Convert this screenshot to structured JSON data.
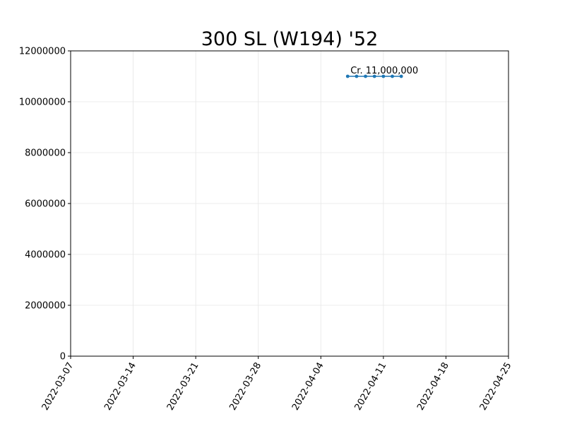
{
  "chart_data": {
    "type": "line",
    "title": "300 SL (W194) '52",
    "xlabel": "",
    "ylabel": "",
    "x_axis_type": "date",
    "xlim": [
      "2022-03-07",
      "2022-04-25"
    ],
    "ylim": [
      0,
      12000000
    ],
    "x_ticks": [
      "2022-03-07",
      "2022-03-14",
      "2022-03-21",
      "2022-03-28",
      "2022-04-04",
      "2022-04-11",
      "2022-04-18",
      "2022-04-25"
    ],
    "y_ticks": [
      0,
      2000000,
      4000000,
      6000000,
      8000000,
      10000000,
      12000000
    ],
    "y_tick_labels": [
      "0",
      "2000000",
      "4000000",
      "6000000",
      "8000000",
      "10000000",
      "12000000"
    ],
    "grid": true,
    "series": [
      {
        "color": "#1f77b4",
        "marker": "circle",
        "points": [
          {
            "x": "2022-04-07",
            "y": 11000000
          },
          {
            "x": "2022-04-08",
            "y": 11000000
          },
          {
            "x": "2022-04-09",
            "y": 11000000
          },
          {
            "x": "2022-04-10",
            "y": 11000000
          },
          {
            "x": "2022-04-11",
            "y": 11000000
          },
          {
            "x": "2022-04-12",
            "y": 11000000
          },
          {
            "x": "2022-04-13",
            "y": 11000000
          }
        ]
      }
    ],
    "annotations": [
      {
        "text": "Cr. 11,000,000",
        "x": "2022-04-07",
        "y": 11000000
      }
    ]
  }
}
